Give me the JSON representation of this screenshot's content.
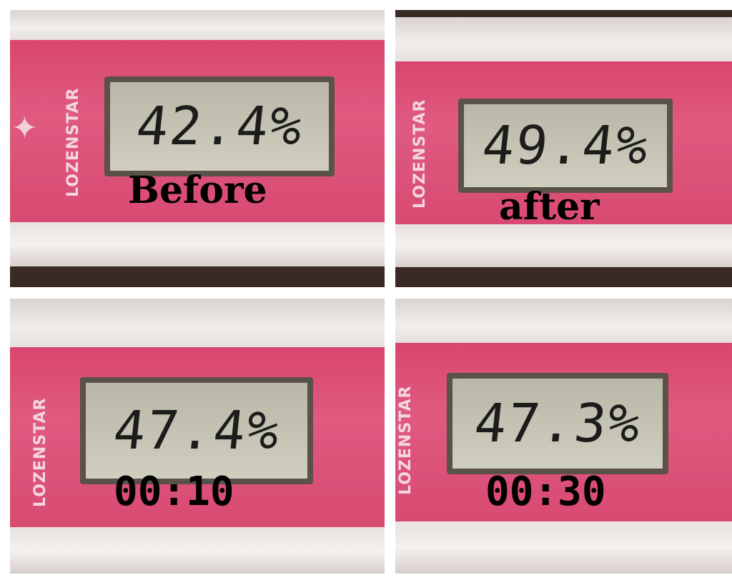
{
  "panels": [
    {
      "brand": "LOZENSTAR",
      "reading": "42.4%",
      "label": "Before"
    },
    {
      "brand": "LOZENSTAR",
      "reading": "49.4%",
      "label": "after"
    },
    {
      "brand": "LOZENSTAR",
      "reading": "47.4%",
      "label": "00:10"
    },
    {
      "brand": "LOZENSTAR",
      "reading": "47.3%",
      "label": "00:30"
    }
  ],
  "colors": {
    "device": "#dd4f78",
    "lcd": "#c6c5b6",
    "background": "#ffffff"
  }
}
